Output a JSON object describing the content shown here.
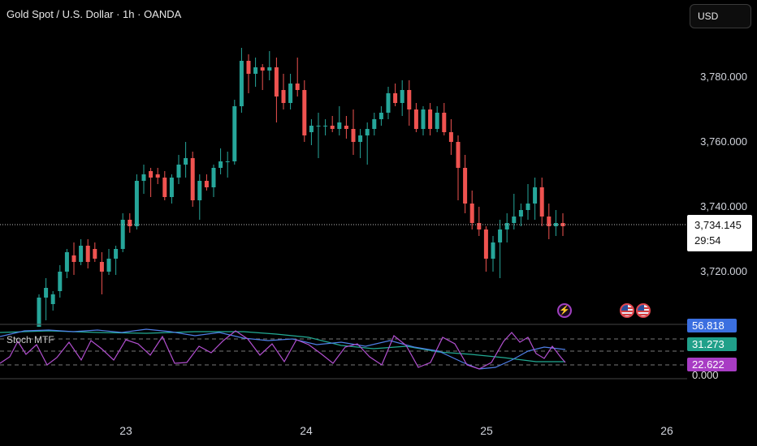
{
  "header": {
    "title": "Gold Spot / U.S. Dollar · 1h · OANDA",
    "currency_button": "USD"
  },
  "price_label": {
    "price": "3,734.145",
    "countdown": "29:54"
  },
  "indicator": {
    "name": "Stoch MTF",
    "values": [
      "56.818",
      "31.273",
      "22.622",
      "0.000"
    ]
  },
  "colors": {
    "up": "#26a69a",
    "down": "#ef5350",
    "stoch_blue": "#4f7fe6",
    "stoch_green": "#22ab94",
    "stoch_purple": "#b24fd0"
  },
  "events": [
    {
      "icon": "lightning-event-icon"
    },
    {
      "icon": "us-flag-event-icon"
    },
    {
      "icon": "us-flag-event-icon"
    }
  ],
  "chart_data": {
    "type": "candlestick",
    "price_axis_labels": [
      "3,780.000",
      "3,760.000",
      "3,740.000",
      "3,720.000"
    ],
    "price_axis_values": [
      3780,
      3760,
      3740,
      3720
    ],
    "time_axis_labels": [
      "23",
      "24",
      "25",
      "26"
    ],
    "last_price": 3734.145,
    "candles": [
      [
        3703,
        3713,
        3703,
        3712
      ],
      [
        3712,
        3718,
        3705,
        3715
      ],
      [
        3710,
        3714,
        3708,
        3713
      ],
      [
        3714,
        3722,
        3712,
        3720
      ],
      [
        3720,
        3727,
        3718,
        3726
      ],
      [
        3725,
        3729,
        3719,
        3723
      ],
      [
        3723,
        3730,
        3722,
        3728
      ],
      [
        3728,
        3730,
        3721,
        3723
      ],
      [
        3727,
        3729,
        3723,
        3724
      ],
      [
        3723,
        3726,
        3713,
        3720
      ],
      [
        3720,
        3727,
        3719,
        3724
      ],
      [
        3724,
        3728,
        3719,
        3727
      ],
      [
        3727,
        3738,
        3726,
        3736
      ],
      [
        3736,
        3738,
        3732,
        3734
      ],
      [
        3734,
        3750,
        3733,
        3748
      ],
      [
        3748,
        3753,
        3744,
        3750
      ],
      [
        3751,
        3752,
        3743,
        3749
      ],
      [
        3750,
        3752,
        3747,
        3749
      ],
      [
        3749,
        3751,
        3742,
        3743
      ],
      [
        3743,
        3750,
        3741,
        3749
      ],
      [
        3749,
        3756,
        3747,
        3753
      ],
      [
        3753,
        3760,
        3749,
        3755
      ],
      [
        3755,
        3757,
        3740,
        3742
      ],
      [
        3742,
        3750,
        3736,
        3748
      ],
      [
        3748,
        3750,
        3745,
        3746
      ],
      [
        3746,
        3753,
        3743,
        3752
      ],
      [
        3752,
        3758,
        3750,
        3754
      ],
      [
        3754,
        3757,
        3749,
        3754
      ],
      [
        3754,
        3773,
        3753,
        3771
      ],
      [
        3771,
        3789,
        3769,
        3785
      ],
      [
        3785,
        3787,
        3775,
        3781
      ],
      [
        3781,
        3786,
        3777,
        3783
      ],
      [
        3783,
        3784,
        3776,
        3782
      ],
      [
        3782,
        3788,
        3779,
        3783
      ],
      [
        3783,
        3786,
        3766,
        3774
      ],
      [
        3776,
        3781,
        3770,
        3772
      ],
      [
        3772,
        3781,
        3770,
        3778
      ],
      [
        3778,
        3786,
        3774,
        3776
      ],
      [
        3776,
        3779,
        3760,
        3762
      ],
      [
        3763,
        3767,
        3759,
        3765
      ],
      [
        3765,
        3769,
        3755,
        3765
      ],
      [
        3765,
        3767,
        3762,
        3765
      ],
      [
        3765,
        3768,
        3763,
        3764
      ],
      [
        3764,
        3771,
        3762,
        3766
      ],
      [
        3765,
        3768,
        3761,
        3764
      ],
      [
        3764,
        3770,
        3756,
        3760
      ],
      [
        3760,
        3764,
        3755,
        3762
      ],
      [
        3762,
        3766,
        3753,
        3764
      ],
      [
        3764,
        3769,
        3762,
        3767
      ],
      [
        3767,
        3771,
        3765,
        3769
      ],
      [
        3769,
        3777,
        3767,
        3775
      ],
      [
        3775,
        3778,
        3771,
        3772
      ],
      [
        3772,
        3779,
        3768,
        3776
      ],
      [
        3776,
        3779,
        3765,
        3770
      ],
      [
        3770,
        3772,
        3763,
        3764
      ],
      [
        3764,
        3771,
        3762,
        3770
      ],
      [
        3770,
        3772,
        3762,
        3764
      ],
      [
        3764,
        3771,
        3763,
        3769
      ],
      [
        3769,
        3772,
        3762,
        3763
      ],
      [
        3763,
        3767,
        3756,
        3760
      ],
      [
        3760,
        3762,
        3742,
        3752
      ],
      [
        3752,
        3756,
        3738,
        3741
      ],
      [
        3741,
        3745,
        3733,
        3735
      ],
      [
        3735,
        3740,
        3731,
        3733
      ],
      [
        3733,
        3734,
        3720,
        3724
      ],
      [
        3724,
        3731,
        3720,
        3729
      ],
      [
        3729,
        3736,
        3718,
        3733
      ],
      [
        3733,
        3738,
        3729,
        3735
      ],
      [
        3735,
        3744,
        3733,
        3737
      ],
      [
        3737,
        3741,
        3734,
        3739
      ],
      [
        3739,
        3747,
        3736,
        3741
      ],
      [
        3741,
        3749,
        3736,
        3746
      ],
      [
        3746,
        3749,
        3734,
        3737
      ],
      [
        3737,
        3741,
        3730,
        3734
      ],
      [
        3734,
        3739,
        3731,
        3735
      ],
      [
        3735,
        3738,
        3731,
        3734
      ]
    ]
  }
}
